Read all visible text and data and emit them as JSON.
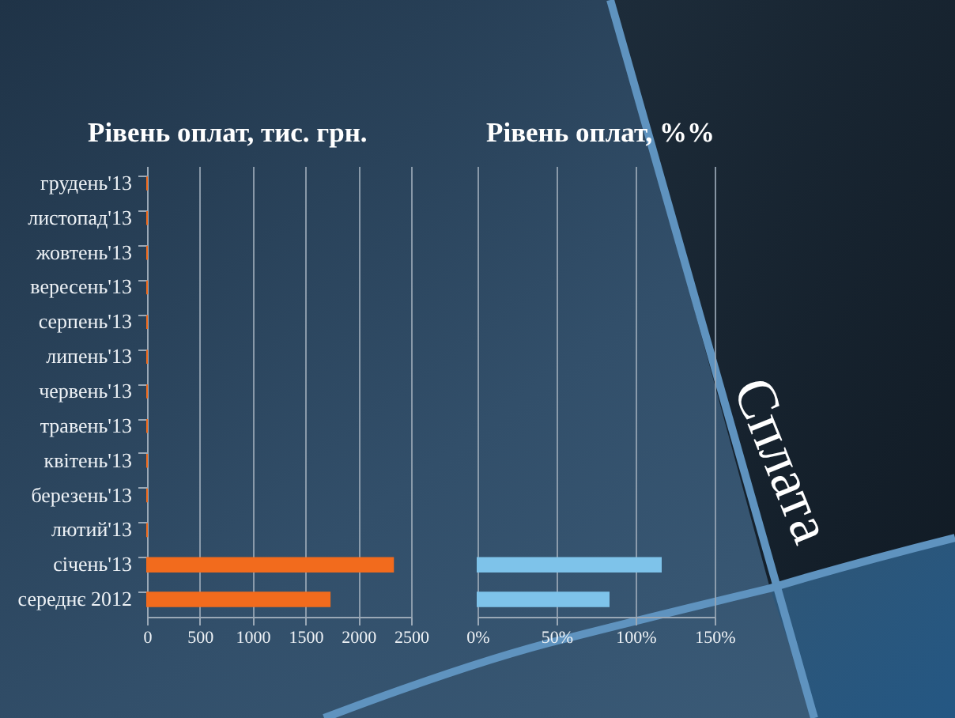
{
  "chart_data": [
    {
      "type": "bar",
      "orientation": "horizontal",
      "title": "Рівень оплат, тис. грн.",
      "categories": [
        "грудень'13",
        "листопад'13",
        "жовтень'13",
        "вересень'13",
        "серпень'13",
        "липень'13",
        "червень'13",
        "травень'13",
        "квітень'13",
        "березень'13",
        "лютий'13",
        "січень'13",
        "середнє 2012"
      ],
      "values": [
        0,
        0,
        0,
        0,
        0,
        0,
        0,
        0,
        0,
        0,
        0,
        2330,
        1730
      ],
      "color": "#f26b1d",
      "xlim": [
        0,
        2500
      ],
      "xticks": [
        0,
        500,
        1000,
        1500,
        2000,
        2500
      ],
      "grid": "x"
    },
    {
      "type": "bar",
      "orientation": "horizontal",
      "title": "Рівень оплат, %%",
      "categories": [
        null,
        null,
        null,
        null,
        null,
        null,
        null,
        null,
        null,
        null,
        null,
        null,
        null
      ],
      "values": [
        null,
        null,
        null,
        null,
        null,
        null,
        null,
        null,
        null,
        null,
        null,
        116,
        83
      ],
      "color": "#7ec3ea",
      "xlim": [
        0,
        150
      ],
      "xticks": [
        {
          "value": 0,
          "label": "0%"
        },
        {
          "value": 50,
          "label": "50%"
        },
        {
          "value": 100,
          "label": "100%"
        },
        {
          "value": 150,
          "label": "150%"
        }
      ],
      "grid": "x",
      "tick_labels": "x",
      "annotations": [
        "Сплата"
      ]
    }
  ]
}
